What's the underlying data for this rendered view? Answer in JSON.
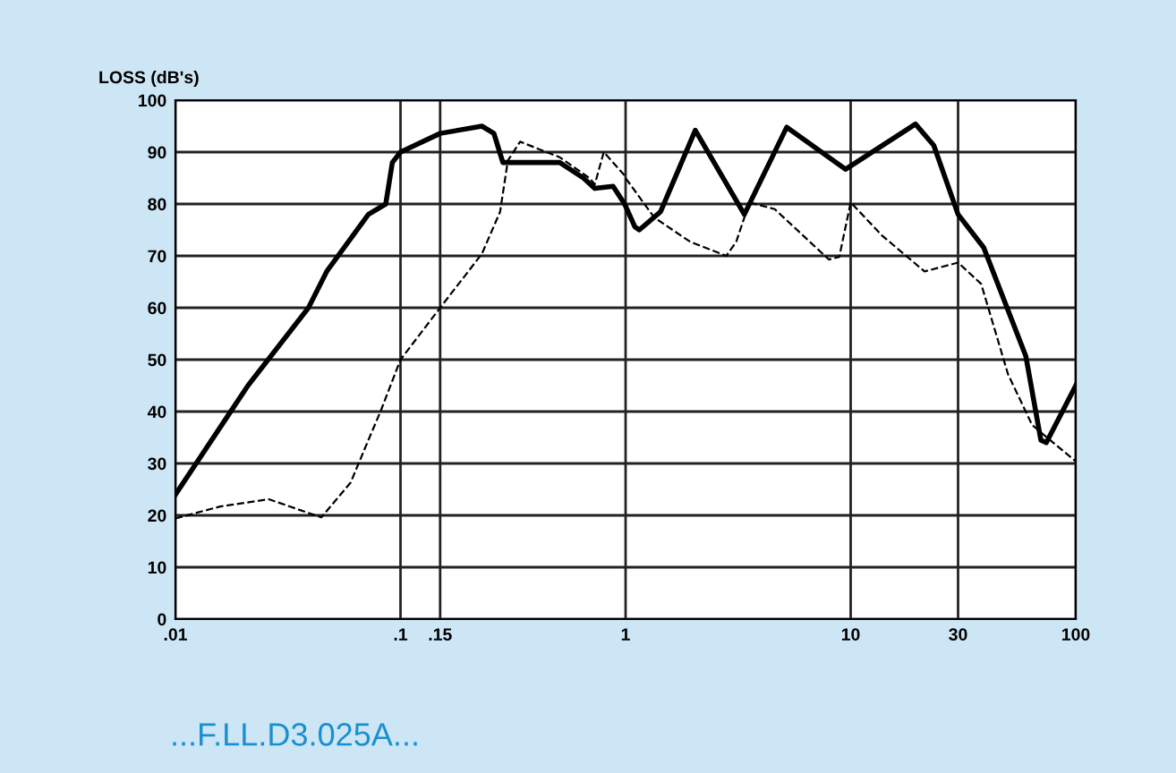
{
  "chart_data": {
    "type": "line",
    "ylabel": "LOSS (dB's)",
    "log": "x",
    "xlim": [
      0.01,
      100
    ],
    "xticks": [
      {
        "value": 0.01,
        "label": ".01"
      },
      {
        "value": 0.1,
        "label": ".1"
      },
      {
        "value": 0.15,
        "label": ".15"
      },
      1,
      10,
      30,
      100
    ],
    "ylim": [
      0,
      100
    ],
    "yticks": [
      0,
      10,
      20,
      30,
      40,
      50,
      60,
      70,
      80,
      90,
      100
    ],
    "grid": true,
    "marker": "none",
    "annotations": [
      "...F.LL.D3.025A..."
    ],
    "series": [
      {
        "color": "#000000",
        "line_style": "solid",
        "x": [
          0.01,
          0.021,
          0.039,
          0.047,
          0.072,
          0.086,
          0.092,
          0.1,
          0.15,
          0.23,
          0.26,
          0.285,
          0.35,
          0.51,
          0.65,
          0.73,
          0.88,
          0.99,
          1.1,
          1.15,
          1.43,
          2.04,
          3.37,
          5.2,
          9.5,
          19.4,
          23.4,
          30,
          39,
          60,
          70,
          74,
          100
        ],
        "values": [
          24,
          45,
          60,
          67,
          78,
          80,
          88,
          90,
          93.6,
          95,
          93.6,
          88,
          88,
          88,
          85,
          83,
          83.4,
          80,
          75.6,
          75,
          78.5,
          94.2,
          78,
          94.8,
          86.7,
          95.4,
          91.3,
          78,
          71.6,
          50.7,
          34.5,
          34,
          45
        ]
      },
      {
        "color": "#000000",
        "line_style": "dashed",
        "x": [
          0.01,
          0.0158,
          0.026,
          0.0445,
          0.06,
          0.072,
          0.082,
          0.1,
          0.15,
          0.23,
          0.277,
          0.3,
          0.34,
          0.51,
          0.69,
          0.73,
          0.8,
          0.99,
          1,
          1.34,
          1.94,
          2.8,
          3.1,
          3.55,
          4.6,
          8,
          8.9,
          10,
          13.8,
          21.3,
          30,
          38,
          50,
          64,
          100
        ],
        "values": [
          19.4,
          21.7,
          23.1,
          19.6,
          26.3,
          34.5,
          40.3,
          50,
          60,
          70.4,
          78.5,
          88.4,
          92,
          89,
          85,
          83.8,
          90,
          85.5,
          85,
          77.4,
          72.7,
          70,
          72.7,
          80.3,
          79,
          69.3,
          69.8,
          80.3,
          73.9,
          67,
          68.7,
          64.6,
          47.2,
          37.4,
          30.4
        ]
      }
    ]
  }
}
